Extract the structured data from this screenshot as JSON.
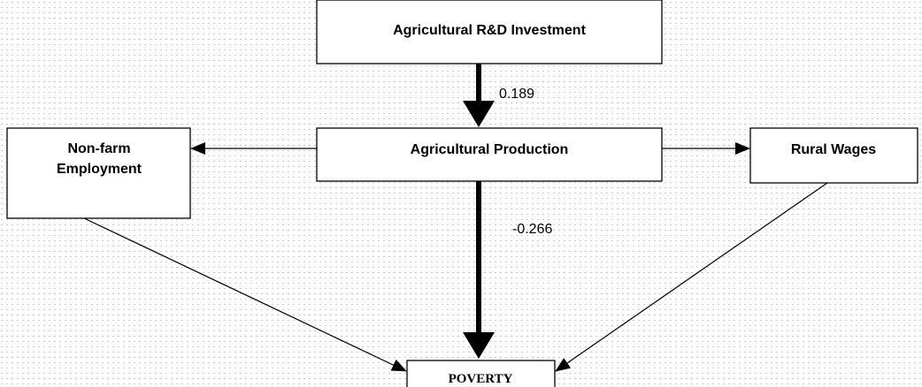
{
  "nodes": [
    {
      "id": "rd",
      "label": [
        "Agricultural R&D Investment"
      ]
    },
    {
      "id": "prod",
      "label": [
        "Agricultural Production"
      ]
    },
    {
      "id": "nonfarm",
      "label": [
        "Non-farm",
        "Employment"
      ]
    },
    {
      "id": "wages",
      "label": [
        "Rural Wages"
      ]
    },
    {
      "id": "poverty",
      "label": [
        "POVERTY"
      ]
    }
  ],
  "edges": [
    {
      "from": "rd",
      "to": "prod",
      "label": "0.189"
    },
    {
      "from": "prod",
      "to": "poverty",
      "label": "-0.266"
    },
    {
      "from": "prod",
      "to": "nonfarm"
    },
    {
      "from": "prod",
      "to": "wages"
    },
    {
      "from": "nonfarm",
      "to": "poverty"
    },
    {
      "from": "wages",
      "to": "poverty"
    }
  ]
}
